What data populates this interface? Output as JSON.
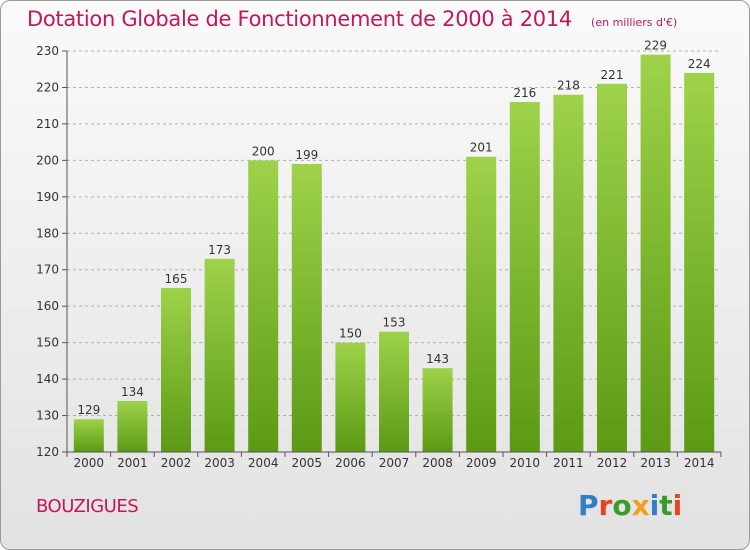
{
  "header": {
    "title": "Dotation Globale de Fonctionnement de 2000 à 2014",
    "unit": "(en milliers d'€)"
  },
  "footer": {
    "commune": "BOUZIGUES",
    "brand_letters": [
      {
        "char": "P",
        "color": "#2f7fc2"
      },
      {
        "char": "r",
        "color": "#e8431c"
      },
      {
        "char": "o",
        "color": "#3a9a2d"
      },
      {
        "char": "x",
        "color": "#f0a020"
      },
      {
        "char": "i",
        "color": "#2f7fc2"
      },
      {
        "char": "t",
        "color": "#3a9a2d"
      },
      {
        "char": "i",
        "color": "#e8431c"
      }
    ]
  },
  "colors": {
    "accent": "#c2175c",
    "bar_light": "#9ed24a",
    "bar_dark": "#5c9a14",
    "grid": "#b0b0b0",
    "axis_text": "#333333"
  },
  "chart_data": {
    "type": "bar",
    "categories": [
      "2000",
      "2001",
      "2002",
      "2003",
      "2004",
      "2005",
      "2006",
      "2007",
      "2008",
      "2009",
      "2010",
      "2011",
      "2012",
      "2013",
      "2014"
    ],
    "values": [
      129,
      134,
      165,
      173,
      200,
      199,
      150,
      153,
      143,
      201,
      216,
      218,
      221,
      229,
      224
    ],
    "ylim": [
      120,
      230
    ],
    "yticks": [
      120,
      130,
      140,
      150,
      160,
      170,
      180,
      190,
      200,
      210,
      220,
      230
    ],
    "grid": true,
    "data_labels": true
  }
}
